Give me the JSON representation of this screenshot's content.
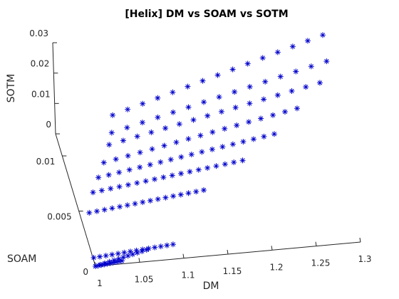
{
  "chart_data": {
    "type": "scatter3d",
    "title": "[Helix] DM vs SOAM vs SOTM",
    "xlabel": "DM",
    "ylabel": "SOAM",
    "zlabel": "SOTM",
    "xlim": [
      1.0,
      1.3
    ],
    "ylim": [
      0.0,
      0.012
    ],
    "zlim": [
      0.0,
      0.03
    ],
    "x_ticks": [
      "1",
      "1.05",
      "1.1",
      "1.15",
      "1.2",
      "1.25",
      "1.3"
    ],
    "x_tick_values": [
      1.0,
      1.05,
      1.1,
      1.15,
      1.2,
      1.25,
      1.3
    ],
    "y_ticks": [
      "0",
      "0.005",
      "0.01"
    ],
    "y_tick_values": [
      0,
      0.005,
      0.01
    ],
    "z_ticks": [
      "0",
      "0.01",
      "0.02",
      "0.03"
    ],
    "z_tick_values": [
      0,
      0.01,
      0.02,
      0.03
    ],
    "grid": false,
    "marker": "asterisk",
    "marker_color": "#0000cc",
    "series": [
      {
        "ends": [
          [
            1.0,
            0.0,
            0.0
          ],
          [
            1.03,
            0.0,
            0.001
          ]
        ],
        "n": 10
      },
      {
        "ends": [
          [
            1.0,
            0.0,
            0.0
          ],
          [
            1.06,
            0.0005,
            0.002
          ]
        ],
        "n": 12
      },
      {
        "ends": [
          [
            1.0,
            0.0005,
            0.001
          ],
          [
            1.09,
            0.0005,
            0.003
          ]
        ],
        "n": 14
      },
      {
        "ends": [
          [
            1.01,
            0.0045,
            0.001
          ],
          [
            1.14,
            0.0045,
            0.005
          ]
        ],
        "n": 16
      },
      {
        "ends": [
          [
            1.02,
            0.006,
            0.002
          ],
          [
            1.19,
            0.006,
            0.008
          ]
        ],
        "n": 18
      },
      {
        "ends": [
          [
            1.03,
            0.007,
            0.003
          ],
          [
            1.23,
            0.007,
            0.012
          ]
        ],
        "n": 18
      },
      {
        "ends": [
          [
            1.04,
            0.008,
            0.004
          ],
          [
            1.26,
            0.008,
            0.016
          ]
        ],
        "n": 17
      },
      {
        "ends": [
          [
            1.05,
            0.009,
            0.006
          ],
          [
            1.29,
            0.009,
            0.02
          ]
        ],
        "n": 16
      },
      {
        "ends": [
          [
            1.055,
            0.0095,
            0.008
          ],
          [
            1.3,
            0.0095,
            0.025
          ]
        ],
        "n": 15
      },
      {
        "ends": [
          [
            1.06,
            0.0105,
            0.01
          ],
          [
            1.3,
            0.0105,
            0.03
          ]
        ],
        "n": 15
      }
    ]
  }
}
